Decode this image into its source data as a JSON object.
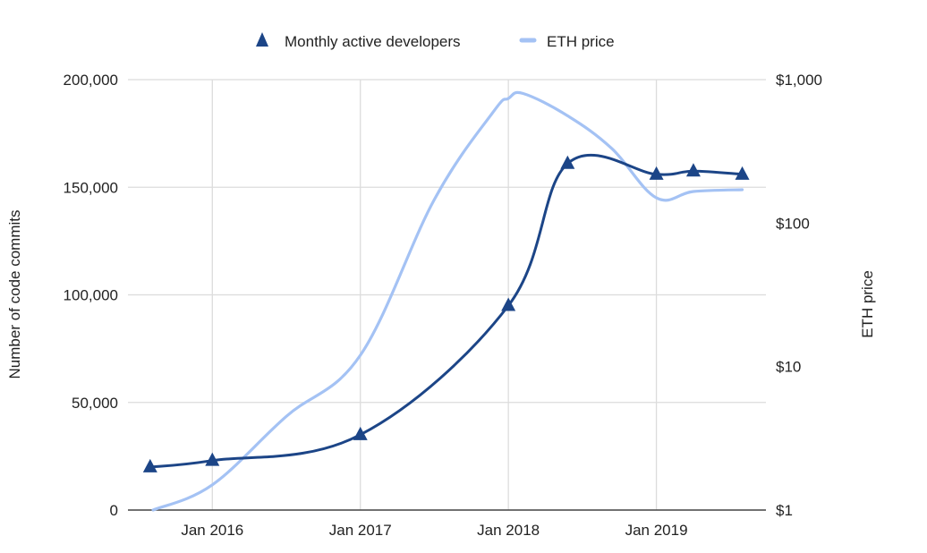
{
  "chart_data": {
    "type": "line",
    "title": "",
    "colors": {
      "developers": "#1c4587",
      "eth": "#a4c2f4",
      "grid": "#dcdcdc",
      "axis": "#444444"
    },
    "legend": {
      "position": "top",
      "entries": [
        {
          "label": "Monthly active developers",
          "marker": "triangle-icon",
          "series": "developers"
        },
        {
          "label": "ETH price",
          "marker": "line-swatch-icon",
          "series": "eth"
        }
      ]
    },
    "xaxis": {
      "type": "time",
      "range_years": [
        2015.43,
        2019.74
      ],
      "ticks": [
        {
          "value": 2016.0,
          "label": "Jan 2016"
        },
        {
          "value": 2017.0,
          "label": "Jan 2017"
        },
        {
          "value": 2018.0,
          "label": "Jan 2018"
        },
        {
          "value": 2019.0,
          "label": "Jan 2019"
        }
      ],
      "grid": true
    },
    "yaxis_left": {
      "label": "Number of code commits",
      "range": [
        0,
        200000
      ],
      "ticks": [
        {
          "value": 0,
          "label": "0"
        },
        {
          "value": 50000,
          "label": "50,000"
        },
        {
          "value": 100000,
          "label": "100,000"
        },
        {
          "value": 150000,
          "label": "150,000"
        },
        {
          "value": 200000,
          "label": "200,000"
        }
      ],
      "grid": true
    },
    "yaxis_right": {
      "label": "ETH price",
      "scale": "log",
      "range": [
        1,
        1000
      ],
      "ticks": [
        {
          "value": 1,
          "label": "$1"
        },
        {
          "value": 10,
          "label": "$10"
        },
        {
          "value": 100,
          "label": "$100"
        },
        {
          "value": 1000,
          "label": "$1,000"
        }
      ]
    },
    "series": [
      {
        "name": "Monthly active developers",
        "key": "developers",
        "axis": "left",
        "markers": true,
        "points": [
          {
            "x": 2015.58,
            "y": 20000
          },
          {
            "x": 2016.0,
            "y": 23000
          },
          {
            "x": 2017.0,
            "y": 35000
          },
          {
            "x": 2018.0,
            "y": 95000
          },
          {
            "x": 2018.4,
            "y": 161000
          },
          {
            "x": 2019.0,
            "y": 156000
          },
          {
            "x": 2019.25,
            "y": 157500
          },
          {
            "x": 2019.58,
            "y": 156000
          }
        ]
      },
      {
        "name": "ETH price",
        "key": "eth",
        "axis": "right",
        "markers": false,
        "points": [
          {
            "x": 2015.6,
            "y": 1.0
          },
          {
            "x": 2016.0,
            "y": 1.5
          },
          {
            "x": 2016.5,
            "y": 4.5
          },
          {
            "x": 2017.0,
            "y": 12
          },
          {
            "x": 2017.5,
            "y": 146
          },
          {
            "x": 2017.9,
            "y": 600
          },
          {
            "x": 2018.0,
            "y": 740
          },
          {
            "x": 2018.1,
            "y": 800
          },
          {
            "x": 2018.4,
            "y": 560
          },
          {
            "x": 2018.7,
            "y": 330
          },
          {
            "x": 2019.0,
            "y": 150
          },
          {
            "x": 2019.25,
            "y": 166
          },
          {
            "x": 2019.58,
            "y": 171
          }
        ]
      }
    ]
  }
}
